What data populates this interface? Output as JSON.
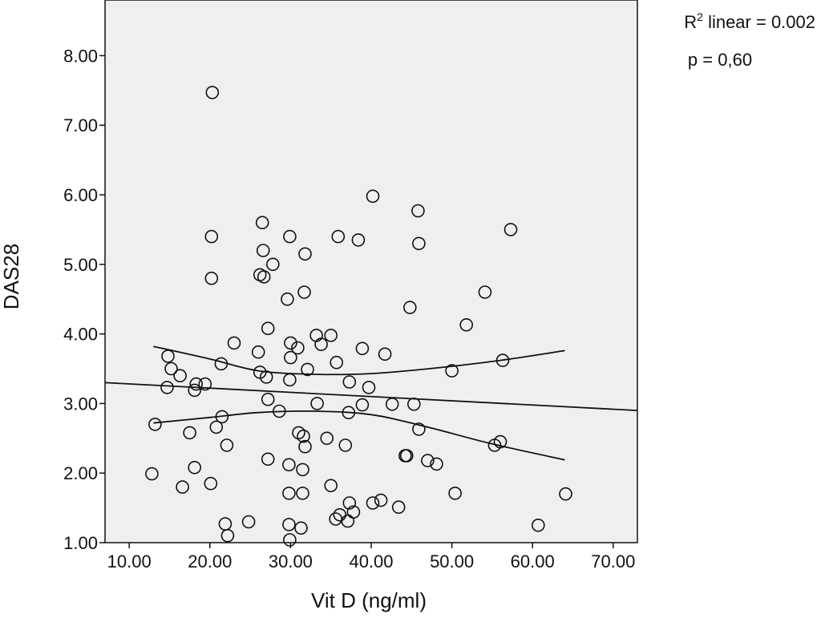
{
  "chart_data": {
    "type": "scatter",
    "title": "",
    "xlabel": "Vit D (ng/ml)",
    "ylabel": "DAS28",
    "xlim": [
      7,
      73
    ],
    "ylim": [
      1.0,
      8.8
    ],
    "x_ticks": [
      "10.00",
      "20.00",
      "30.00",
      "40.00",
      "50.00",
      "60.00",
      "70.00"
    ],
    "y_ticks": [
      "1.00",
      "2.00",
      "3.00",
      "4.00",
      "5.00",
      "6.00",
      "7.00",
      "8.00"
    ],
    "grid": false,
    "plot_background": "#efefef",
    "annotations": {
      "r_squared_prefix": "R",
      "r_squared_sup": "2",
      "r_squared_rest": " linear = 0.002",
      "p_value": "p = 0,60"
    },
    "points": [
      {
        "x": 20.3,
        "y": 7.47
      },
      {
        "x": 40.2,
        "y": 5.98
      },
      {
        "x": 45.8,
        "y": 5.77
      },
      {
        "x": 26.5,
        "y": 5.6
      },
      {
        "x": 57.3,
        "y": 5.5
      },
      {
        "x": 20.2,
        "y": 5.4
      },
      {
        "x": 29.9,
        "y": 5.4
      },
      {
        "x": 35.9,
        "y": 5.4
      },
      {
        "x": 38.4,
        "y": 5.35
      },
      {
        "x": 45.9,
        "y": 5.3
      },
      {
        "x": 26.6,
        "y": 5.2
      },
      {
        "x": 31.8,
        "y": 5.15
      },
      {
        "x": 27.8,
        "y": 5.0
      },
      {
        "x": 26.2,
        "y": 4.85
      },
      {
        "x": 20.2,
        "y": 4.8
      },
      {
        "x": 26.7,
        "y": 4.82
      },
      {
        "x": 31.7,
        "y": 4.6
      },
      {
        "x": 29.6,
        "y": 4.5
      },
      {
        "x": 54.1,
        "y": 4.6
      },
      {
        "x": 44.8,
        "y": 4.38
      },
      {
        "x": 51.8,
        "y": 4.13
      },
      {
        "x": 27.2,
        "y": 4.08
      },
      {
        "x": 33.2,
        "y": 3.98
      },
      {
        "x": 35.0,
        "y": 3.98
      },
      {
        "x": 23.0,
        "y": 3.87
      },
      {
        "x": 30.0,
        "y": 3.87
      },
      {
        "x": 33.8,
        "y": 3.85
      },
      {
        "x": 30.9,
        "y": 3.8
      },
      {
        "x": 38.9,
        "y": 3.79
      },
      {
        "x": 26.0,
        "y": 3.74
      },
      {
        "x": 41.7,
        "y": 3.71
      },
      {
        "x": 14.8,
        "y": 3.68
      },
      {
        "x": 30.0,
        "y": 3.66
      },
      {
        "x": 35.7,
        "y": 3.59
      },
      {
        "x": 21.4,
        "y": 3.57
      },
      {
        "x": 56.3,
        "y": 3.62
      },
      {
        "x": 15.2,
        "y": 3.5
      },
      {
        "x": 32.1,
        "y": 3.49
      },
      {
        "x": 50.0,
        "y": 3.47
      },
      {
        "x": 26.2,
        "y": 3.45
      },
      {
        "x": 16.3,
        "y": 3.4
      },
      {
        "x": 27.0,
        "y": 3.38
      },
      {
        "x": 29.9,
        "y": 3.34
      },
      {
        "x": 37.3,
        "y": 3.31
      },
      {
        "x": 18.3,
        "y": 3.28
      },
      {
        "x": 19.4,
        "y": 3.28
      },
      {
        "x": 14.7,
        "y": 3.23
      },
      {
        "x": 39.7,
        "y": 3.23
      },
      {
        "x": 18.1,
        "y": 3.19
      },
      {
        "x": 27.2,
        "y": 3.06
      },
      {
        "x": 33.3,
        "y": 3.0
      },
      {
        "x": 38.9,
        "y": 2.98
      },
      {
        "x": 42.6,
        "y": 2.99
      },
      {
        "x": 45.3,
        "y": 2.99
      },
      {
        "x": 28.6,
        "y": 2.89
      },
      {
        "x": 37.2,
        "y": 2.87
      },
      {
        "x": 21.5,
        "y": 2.81
      },
      {
        "x": 13.2,
        "y": 2.7
      },
      {
        "x": 20.8,
        "y": 2.66
      },
      {
        "x": 45.9,
        "y": 2.63
      },
      {
        "x": 31.0,
        "y": 2.58
      },
      {
        "x": 17.5,
        "y": 2.58
      },
      {
        "x": 31.6,
        "y": 2.53
      },
      {
        "x": 34.5,
        "y": 2.5
      },
      {
        "x": 56.0,
        "y": 2.45
      },
      {
        "x": 55.3,
        "y": 2.4
      },
      {
        "x": 22.1,
        "y": 2.4
      },
      {
        "x": 36.8,
        "y": 2.4
      },
      {
        "x": 31.8,
        "y": 2.38
      },
      {
        "x": 44.2,
        "y": 2.25
      },
      {
        "x": 44.4,
        "y": 2.25
      },
      {
        "x": 27.2,
        "y": 2.2
      },
      {
        "x": 47.0,
        "y": 2.18
      },
      {
        "x": 48.1,
        "y": 2.13
      },
      {
        "x": 29.8,
        "y": 2.12
      },
      {
        "x": 18.1,
        "y": 2.08
      },
      {
        "x": 31.5,
        "y": 2.05
      },
      {
        "x": 12.8,
        "y": 1.99
      },
      {
        "x": 20.1,
        "y": 1.85
      },
      {
        "x": 35.0,
        "y": 1.82
      },
      {
        "x": 16.6,
        "y": 1.8
      },
      {
        "x": 29.8,
        "y": 1.71
      },
      {
        "x": 31.5,
        "y": 1.71
      },
      {
        "x": 50.4,
        "y": 1.71
      },
      {
        "x": 64.1,
        "y": 1.7
      },
      {
        "x": 41.2,
        "y": 1.61
      },
      {
        "x": 40.2,
        "y": 1.57
      },
      {
        "x": 37.3,
        "y": 1.57
      },
      {
        "x": 43.4,
        "y": 1.51
      },
      {
        "x": 37.8,
        "y": 1.44
      },
      {
        "x": 36.1,
        "y": 1.4
      },
      {
        "x": 35.6,
        "y": 1.34
      },
      {
        "x": 37.1,
        "y": 1.31
      },
      {
        "x": 24.8,
        "y": 1.3
      },
      {
        "x": 21.9,
        "y": 1.27
      },
      {
        "x": 29.8,
        "y": 1.26
      },
      {
        "x": 60.7,
        "y": 1.25
      },
      {
        "x": 31.3,
        "y": 1.21
      },
      {
        "x": 22.2,
        "y": 1.1
      },
      {
        "x": 29.9,
        "y": 1.04
      }
    ],
    "series": [
      {
        "values": [
          {
            "x": 7.0,
            "y": 3.3
          },
          {
            "x": 73.0,
            "y": 2.9
          }
        ]
      },
      {
        "values": [
          {
            "x": 13.0,
            "y": 3.82
          },
          {
            "x": 20.0,
            "y": 3.64
          },
          {
            "x": 26.0,
            "y": 3.47
          },
          {
            "x": 33.0,
            "y": 3.42
          },
          {
            "x": 40.0,
            "y": 3.43
          },
          {
            "x": 48.0,
            "y": 3.51
          },
          {
            "x": 56.0,
            "y": 3.62
          },
          {
            "x": 64.0,
            "y": 3.76
          }
        ]
      },
      {
        "values": [
          {
            "x": 13.0,
            "y": 2.72
          },
          {
            "x": 20.0,
            "y": 2.8
          },
          {
            "x": 26.0,
            "y": 2.87
          },
          {
            "x": 33.0,
            "y": 2.89
          },
          {
            "x": 40.0,
            "y": 2.84
          },
          {
            "x": 47.0,
            "y": 2.66
          },
          {
            "x": 55.0,
            "y": 2.42
          },
          {
            "x": 64.0,
            "y": 2.19
          }
        ]
      }
    ]
  }
}
